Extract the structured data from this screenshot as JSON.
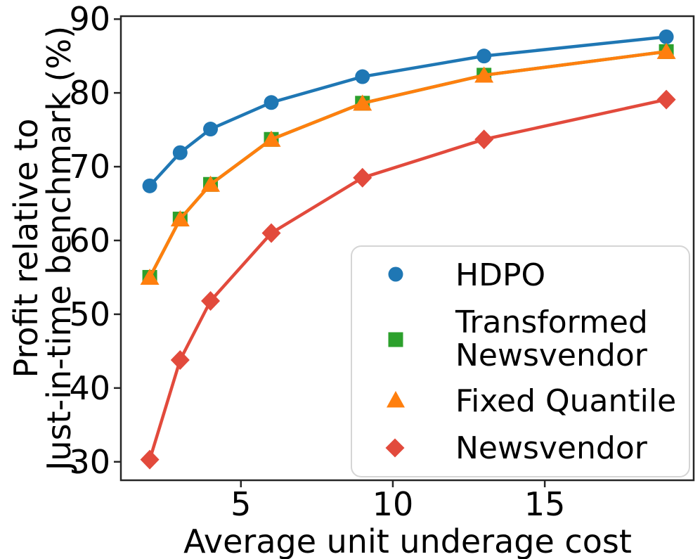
{
  "chart_data": {
    "type": "line",
    "title": "",
    "xlabel": "Average unit underage cost",
    "ylabel": "Profit relative to\nJust-in-time benchmark (%)",
    "ylabel_lines": [
      "Profit relative to",
      "Just-in-time benchmark (%)"
    ],
    "x": [
      2,
      3,
      4,
      6,
      9,
      13,
      19
    ],
    "series": [
      {
        "name": "HDPO",
        "color": "#1f77b4",
        "marker": "circle",
        "values": [
          67.4,
          71.9,
          75.1,
          78.7,
          82.2,
          85.0,
          87.6
        ]
      },
      {
        "name": "Transformed Newsvendor",
        "color": "#2ca02c",
        "marker": "square",
        "values": [
          55.0,
          62.9,
          67.6,
          73.7,
          78.6,
          82.4,
          85.6
        ]
      },
      {
        "name": "Fixed Quantile",
        "color": "#ff7f0e",
        "marker": "triangle",
        "values": [
          55.0,
          62.9,
          67.6,
          73.7,
          78.6,
          82.4,
          85.6
        ]
      },
      {
        "name": "Newsvendor",
        "color": "#e24a3c",
        "marker": "diamond",
        "values": [
          30.3,
          43.8,
          51.8,
          61.0,
          68.5,
          73.7,
          79.1
        ]
      }
    ],
    "xticks": [
      5,
      10,
      15
    ],
    "yticks": [
      30,
      40,
      50,
      60,
      70,
      80,
      90
    ],
    "xlim": [
      1.05,
      19.9
    ],
    "ylim": [
      27.5,
      90.4
    ],
    "grid": false,
    "legend_position": "lower right",
    "line_width": 4.5,
    "axis_color": "#262626",
    "text_color": "#000000",
    "background_color": "#ffffff"
  },
  "legend": {
    "items": [
      {
        "lines": [
          "HDPO"
        ]
      },
      {
        "lines": [
          "Transformed",
          "Newsvendor"
        ]
      },
      {
        "lines": [
          "Fixed Quantile"
        ]
      },
      {
        "lines": [
          "Newsvendor"
        ]
      }
    ],
    "border_color": "#d5d5d5",
    "background_color": "#ffffff"
  }
}
